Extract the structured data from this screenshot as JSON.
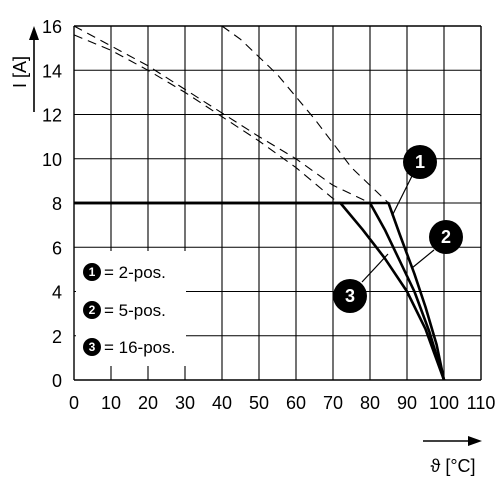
{
  "chart_data": {
    "type": "line",
    "xlabel": "ϑ [°C]",
    "ylabel": "I [A]",
    "xlim": [
      0,
      110
    ],
    "ylim": [
      0,
      16
    ],
    "x_ticks": [
      0,
      10,
      20,
      30,
      40,
      50,
      60,
      70,
      80,
      90,
      100,
      110
    ],
    "y_ticks": [
      0,
      2,
      4,
      6,
      8,
      10,
      12,
      14,
      16
    ],
    "grid": true,
    "series": [
      {
        "name": "2-pos.",
        "badge": "1",
        "solid": [
          [
            0,
            8
          ],
          [
            85,
            8
          ],
          [
            88,
            6.6
          ],
          [
            92,
            4.8
          ],
          [
            95,
            3.3
          ],
          [
            98,
            1.6
          ],
          [
            100,
            0
          ]
        ],
        "dashed": [
          [
            40,
            16
          ],
          [
            45,
            15.4
          ],
          [
            55,
            13.8
          ],
          [
            65,
            11.8
          ],
          [
            75,
            9.6
          ],
          [
            85,
            8
          ]
        ]
      },
      {
        "name": "5-pos.",
        "badge": "2",
        "solid": [
          [
            0,
            8
          ],
          [
            80,
            8
          ],
          [
            84,
            6.8
          ],
          [
            88,
            5.4
          ],
          [
            92,
            4.0
          ],
          [
            96,
            2.2
          ],
          [
            100,
            0
          ]
        ],
        "dashed": [
          [
            0,
            16
          ],
          [
            20,
            14.2
          ],
          [
            35,
            12.6
          ],
          [
            50,
            11.0
          ],
          [
            60,
            10.0
          ],
          [
            70,
            8.8
          ],
          [
            80,
            8
          ]
        ]
      },
      {
        "name": "16-pos.",
        "badge": "3",
        "solid": [
          [
            0,
            8
          ],
          [
            72,
            8
          ],
          [
            78,
            6.8
          ],
          [
            84,
            5.5
          ],
          [
            90,
            4.0
          ],
          [
            95,
            2.3
          ],
          [
            100,
            0
          ]
        ],
        "dashed": [
          [
            0,
            15.6
          ],
          [
            10,
            14.9
          ],
          [
            20,
            14.0
          ],
          [
            30,
            13.0
          ],
          [
            40,
            11.9
          ],
          [
            50,
            10.8
          ],
          [
            60,
            9.6
          ],
          [
            70,
            8.2
          ],
          [
            72,
            8
          ]
        ]
      }
    ],
    "legend": {
      "placement": "bottom-left",
      "entries": [
        {
          "badge": "1",
          "text": "= 2-pos."
        },
        {
          "badge": "2",
          "text": "= 5-pos."
        },
        {
          "badge": "3",
          "text": "= 16-pos."
        }
      ]
    },
    "annotations": [
      "1",
      "2",
      "3"
    ]
  }
}
